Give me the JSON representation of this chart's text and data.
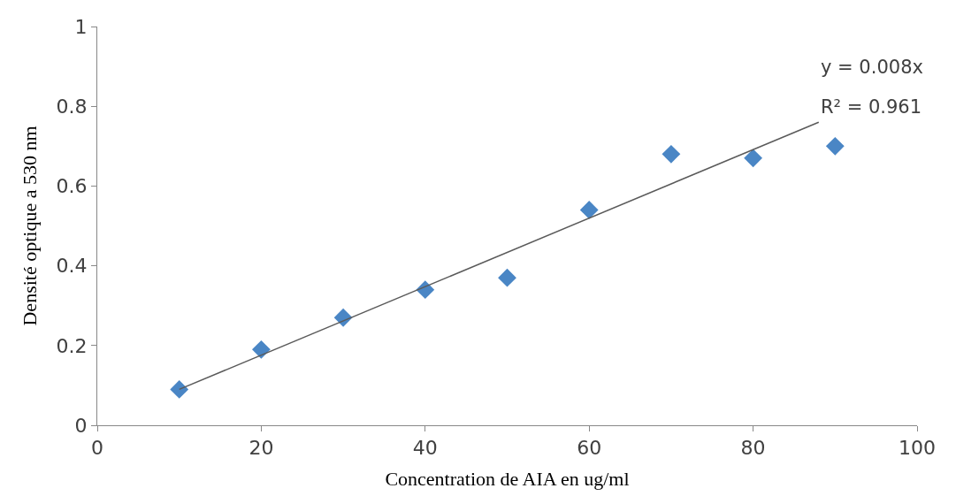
{
  "chart_data": {
    "type": "scatter",
    "xlabel": "Concentration de AIA en ug/ml",
    "ylabel": "Densité optique a 530 nm",
    "x": [
      10,
      20,
      30,
      40,
      50,
      60,
      70,
      80,
      90
    ],
    "series": [
      {
        "color": "#4a86c5",
        "marker": "diamond",
        "values": [
          0.09,
          0.19,
          0.27,
          0.34,
          0.37,
          0.54,
          0.68,
          0.67,
          0.7
        ]
      },
      {
        "type": "line",
        "color": "#5a5a5a",
        "marker": "none",
        "x": [
          10,
          88
        ],
        "values": [
          0.09,
          0.76
        ]
      }
    ],
    "annotations": [
      "y = 0.008x",
      "R² = 0.961"
    ],
    "xlim": [
      0,
      100
    ],
    "xticks": [
      0,
      20,
      40,
      60,
      80,
      100
    ],
    "ylim": [
      0,
      1
    ],
    "yticks": [
      0,
      0.2,
      0.4,
      0.6,
      0.8,
      1
    ]
  }
}
